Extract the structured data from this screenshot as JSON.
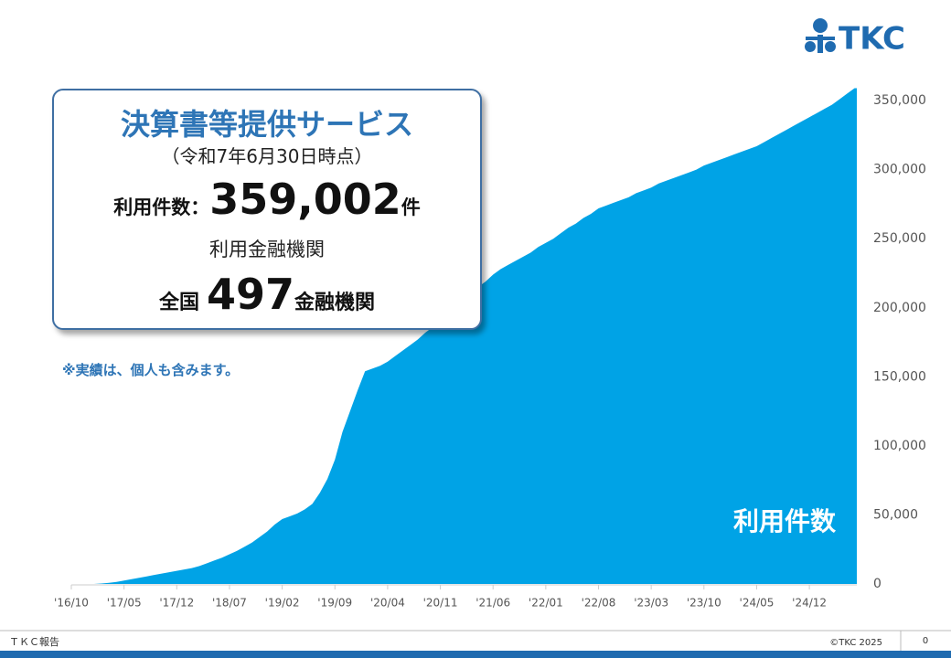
{
  "chart_data": {
    "type": "area",
    "categories": [
      "'16/10",
      null,
      null,
      null,
      null,
      null,
      null,
      "'17/05",
      null,
      null,
      null,
      null,
      null,
      null,
      "'17/12",
      null,
      null,
      null,
      null,
      null,
      null,
      "'18/07",
      null,
      null,
      null,
      null,
      null,
      null,
      "'19/02",
      null,
      null,
      null,
      null,
      null,
      null,
      "'19/09",
      null,
      null,
      null,
      null,
      null,
      null,
      "'20/04",
      null,
      null,
      null,
      null,
      null,
      null,
      "'20/11",
      null,
      null,
      null,
      null,
      null,
      null,
      "'21/06",
      null,
      null,
      null,
      null,
      null,
      null,
      "'22/01",
      null,
      null,
      null,
      null,
      null,
      null,
      "'22/08",
      null,
      null,
      null,
      null,
      null,
      null,
      "'23/03",
      null,
      null,
      null,
      null,
      null,
      null,
      "'23/10",
      null,
      null,
      null,
      null,
      null,
      null,
      "'24/05",
      null,
      null,
      null,
      null,
      null,
      null,
      "'24/12",
      null,
      null,
      null,
      null,
      null,
      null
    ],
    "series": [
      {
        "name": "利用件数",
        "color": "#00a3e6",
        "values": [
          0,
          0,
          0,
          0,
          300,
          800,
          1500,
          2500,
          3500,
          4500,
          5500,
          6500,
          7500,
          8500,
          9500,
          10500,
          11500,
          13000,
          15000,
          17000,
          19000,
          21500,
          24000,
          27000,
          30000,
          34000,
          38000,
          43000,
          47000,
          49000,
          51000,
          54000,
          58000,
          66000,
          76000,
          90000,
          110000,
          125000,
          140000,
          154000,
          156000,
          158000,
          161000,
          165000,
          169000,
          173000,
          177000,
          182000,
          186000,
          190000,
          195000,
          200000,
          205000,
          210000,
          215000,
          219000,
          224000,
          228000,
          231000,
          234000,
          237000,
          240000,
          244000,
          247000,
          250000,
          254000,
          258000,
          261000,
          265000,
          268000,
          272000,
          274000,
          276000,
          278000,
          280000,
          283000,
          285000,
          287000,
          290000,
          292000,
          294000,
          296000,
          298000,
          300000,
          303000,
          305000,
          307000,
          309000,
          311000,
          313000,
          315000,
          317000,
          320000,
          323000,
          326000,
          329000,
          332000,
          335000,
          338000,
          341000,
          344000,
          347000,
          351000,
          355000,
          359002
        ]
      }
    ],
    "ylim": [
      0,
      360000
    ],
    "yticks": [
      0,
      {
        "value": 50000,
        "label": "50,000"
      },
      {
        "value": 100000,
        "label": "100,000"
      },
      {
        "value": 150000,
        "label": "150,000"
      },
      {
        "value": 200000,
        "label": "200,000"
      },
      {
        "value": 250000,
        "label": "250,000"
      },
      {
        "value": 300000,
        "label": "300,000"
      },
      {
        "value": 350000,
        "label": "350,000"
      }
    ],
    "y_axis_side": "right",
    "grid": false
  },
  "logo": "TKC",
  "callout": {
    "title": "決算書等提供サービス",
    "date": "（令和7年6月30日時点）",
    "count_label": "利用件数：",
    "count": "359,002",
    "count_unit": "件",
    "institutions_label": "利用金融機関",
    "institutions_prefix": "全国",
    "institutions": "497",
    "institutions_unit": "金融機関"
  },
  "note": "※実績は、個人も含みます。",
  "footer": {
    "left": "ＴＫＣ報告",
    "copyright": "©TKC 2025",
    "page": "0"
  }
}
